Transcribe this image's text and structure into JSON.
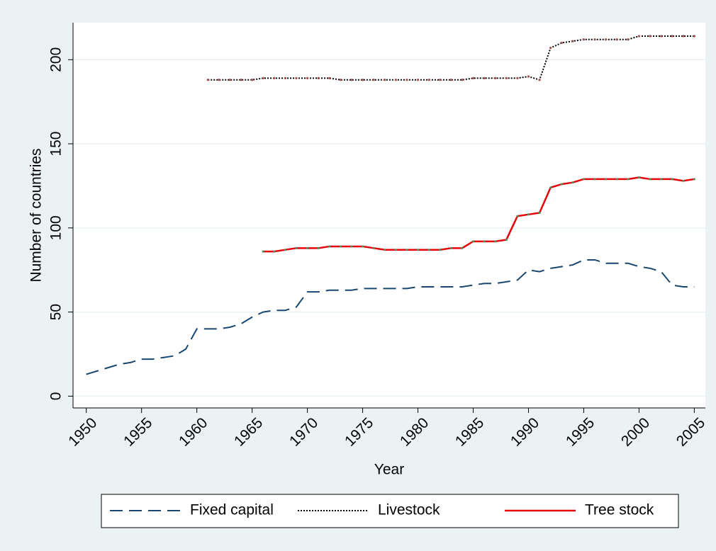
{
  "chart_data": {
    "type": "line",
    "y_label": "Number of countries",
    "x_label": "Year",
    "x": [
      1950,
      1951,
      1952,
      1953,
      1954,
      1955,
      1956,
      1957,
      1958,
      1959,
      1960,
      1961,
      1962,
      1963,
      1964,
      1965,
      1966,
      1967,
      1968,
      1969,
      1970,
      1971,
      1972,
      1973,
      1974,
      1975,
      1976,
      1977,
      1978,
      1979,
      1980,
      1981,
      1982,
      1983,
      1984,
      1985,
      1986,
      1987,
      1988,
      1989,
      1990,
      1991,
      1992,
      1993,
      1994,
      1995,
      1996,
      1997,
      1998,
      1999,
      2000,
      2001,
      2002,
      2003,
      2004,
      2005
    ],
    "series": [
      {
        "name": "Fixed capital",
        "color": "#1a476f",
        "dash": "18,9",
        "values": [
          13,
          15,
          17,
          19,
          20,
          22,
          22,
          23,
          24,
          28,
          40,
          40,
          40,
          41,
          43,
          47,
          50,
          51,
          51,
          53,
          62,
          62,
          63,
          63,
          63,
          64,
          64,
          64,
          64,
          64,
          65,
          65,
          65,
          65,
          65,
          66,
          67,
          67,
          68,
          69,
          75,
          74,
          76,
          77,
          78,
          81,
          81,
          79,
          79,
          79,
          77,
          76,
          74,
          66,
          65,
          65
        ]
      },
      {
        "name": "Livestock",
        "color": "#000000",
        "dash": "2,2",
        "marker": "#a05050",
        "values": [
          null,
          null,
          null,
          null,
          null,
          null,
          null,
          null,
          null,
          null,
          null,
          188,
          188,
          188,
          188,
          188,
          189,
          189,
          189,
          189,
          189,
          189,
          189,
          188,
          188,
          188,
          188,
          188,
          188,
          188,
          188,
          188,
          188,
          188,
          188,
          189,
          189,
          189,
          189,
          189,
          190,
          188,
          207,
          210,
          211,
          212,
          212,
          212,
          212,
          212,
          214,
          214,
          214,
          214,
          214,
          214
        ]
      },
      {
        "name": "Tree stock",
        "color": "#e8000b",
        "marker": "#5a8a5a",
        "values": [
          null,
          null,
          null,
          null,
          null,
          null,
          null,
          null,
          null,
          null,
          null,
          null,
          null,
          null,
          null,
          null,
          86,
          86,
          87,
          88,
          88,
          88,
          89,
          89,
          89,
          89,
          88,
          87,
          87,
          87,
          87,
          87,
          87,
          88,
          88,
          92,
          92,
          92,
          93,
          107,
          108,
          109,
          124,
          126,
          127,
          129,
          129,
          129,
          129,
          129,
          130,
          129,
          129,
          129,
          128,
          129
        ]
      }
    ],
    "xlim": [
      1948.8,
      2006
    ],
    "xticks": [
      1950,
      1955,
      1960,
      1965,
      1970,
      1975,
      1980,
      1985,
      1990,
      1995,
      2000,
      2005
    ],
    "ylim": [
      -7,
      222
    ],
    "yticks": [
      0,
      50,
      100,
      150,
      200
    ],
    "grid": true,
    "legend": "bottom"
  }
}
